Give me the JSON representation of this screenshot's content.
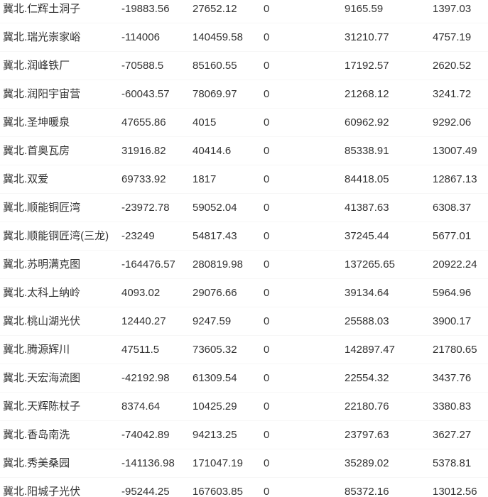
{
  "colors": {
    "background": "#ffffff",
    "text": "#333333",
    "row_separator": "#f7f7f7"
  },
  "table": {
    "description": "station-energy-values-grid",
    "rows": [
      {
        "cells": [
          "冀北.仁辉土洞子",
          "-19883.56",
          "27652.12",
          "0",
          "9165.59",
          "1397.03"
        ]
      },
      {
        "cells": [
          "冀北.瑞光崇家峪",
          "-114006",
          "140459.58",
          "0",
          "31210.77",
          "4757.19"
        ]
      },
      {
        "cells": [
          "冀北.润峰铁厂",
          "-70588.5",
          "85160.55",
          "0",
          "17192.57",
          "2620.52"
        ]
      },
      {
        "cells": [
          "冀北.润阳宇宙营",
          "-60043.57",
          "78069.97",
          "0",
          "21268.12",
          "3241.72"
        ]
      },
      {
        "cells": [
          "冀北.圣坤暖泉",
          "47655.86",
          "4015",
          "0",
          "60962.92",
          "9292.06"
        ]
      },
      {
        "cells": [
          "冀北.首奥瓦房",
          "31916.82",
          "40414.6",
          "0",
          "85338.91",
          "13007.49"
        ]
      },
      {
        "cells": [
          "冀北.双爱",
          "69733.92",
          "1817",
          "0",
          "84418.05",
          "12867.13"
        ]
      },
      {
        "cells": [
          "冀北.顺能铜匠湾",
          "-23972.78",
          "59052.04",
          "0",
          "41387.63",
          "6308.37"
        ]
      },
      {
        "cells": [
          "冀北.顺能铜匠湾(三龙)",
          "-23249",
          "54817.43",
          "0",
          "37245.44",
          "5677.01"
        ]
      },
      {
        "cells": [
          "冀北.苏明满克图",
          "-164476.57",
          "280819.98",
          "0",
          "137265.65",
          "20922.24"
        ]
      },
      {
        "cells": [
          "冀北.太科上纳岭",
          "4093.02",
          "29076.66",
          "0",
          "39134.64",
          "5964.96"
        ]
      },
      {
        "cells": [
          "冀北.桃山湖光伏",
          "12440.27",
          "9247.59",
          "0",
          "25588.03",
          "3900.17"
        ]
      },
      {
        "cells": [
          "冀北.腾源辉川",
          "47511.5",
          "73605.32",
          "0",
          "142897.47",
          "21780.65"
        ]
      },
      {
        "cells": [
          "冀北.天宏海流图",
          "-42192.98",
          "61309.54",
          "0",
          "22554.32",
          "3437.76"
        ]
      },
      {
        "cells": [
          "冀北.天辉陈杖子",
          "8374.64",
          "10425.29",
          "0",
          "22180.76",
          "3380.83"
        ]
      },
      {
        "cells": [
          "冀北.香岛南洗",
          "-74042.89",
          "94213.25",
          "0",
          "23797.63",
          "3627.27"
        ]
      },
      {
        "cells": [
          "冀北.秀美桑园",
          "-141136.98",
          "171047.19",
          "0",
          "35289.02",
          "5378.81"
        ]
      },
      {
        "cells": [
          "冀北.阳城子光伏",
          "-95244.25",
          "167603.85",
          "0",
          "85372.16",
          "13012.56"
        ]
      }
    ]
  }
}
